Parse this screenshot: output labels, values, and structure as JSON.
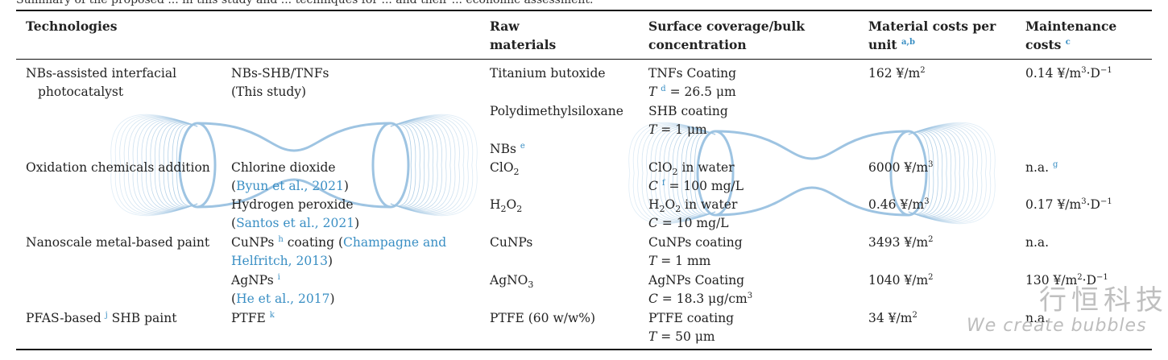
{
  "caption_fragment": "Summary of the proposed ... in this study and ... techniques for ... and their ... economic assessment.",
  "headers": {
    "technologies": "Technologies",
    "raw_materials_1": "Raw",
    "raw_materials_2": "materials",
    "surface_1": "Surface coverage/bulk",
    "surface_2": "concentration",
    "material_costs_1": "Material costs per",
    "material_costs_2": "unit",
    "material_costs_sup": "a,b",
    "maintenance_1": "Maintenance",
    "maintenance_2": "costs",
    "maintenance_sup": "c"
  },
  "rows": {
    "r1": {
      "category_1": "NBs-assisted interfacial",
      "category_2": "photocatalyst",
      "name_1": "NBs-SHB/TNFs",
      "name_2": "(This study)",
      "raw": "Titanium butoxide",
      "cov_1": "TNFs Coating",
      "cov_2_var": "T",
      "cov_2_sup": "d",
      "cov_2_val": " = 26.5 μm",
      "cost": "162 ¥/m",
      "cost_exp": "2",
      "maint_pre": "0.14 ¥/m",
      "maint_exp": "3",
      "maint_mid": "·D",
      "maint_exp2": "−1"
    },
    "r1b": {
      "raw": "Polydimethylsiloxane",
      "cov_1": "SHB coating",
      "cov_2_var": "T",
      "cov_2_val": " = 1 μm"
    },
    "r1c": {
      "raw": "NBs",
      "raw_sup": "e"
    },
    "r2": {
      "category": "Oxidation chemicals addition",
      "name_1": "Chlorine dioxide",
      "ref_open": "(",
      "ref": "Byun et al., 2021",
      "ref_close": ")",
      "raw_a": "ClO",
      "raw_sub": "2",
      "cov_1a": "ClO",
      "cov_1sub": "2",
      "cov_1b": " in water",
      "cov_2_var": "C",
      "cov_2_sup": "f",
      "cov_2_val": " = 100 mg/L",
      "cost": "6000 ¥/m",
      "cost_exp": "3",
      "maint": "n.a.",
      "maint_sup": "g"
    },
    "r3": {
      "name_1": "Hydrogen peroxide",
      "ref_open": "(",
      "ref": "Santos et al., 2021",
      "ref_close": ")",
      "raw_a": "H",
      "raw_sub1": "2",
      "raw_b": "O",
      "raw_sub2": "2",
      "cov_1a": "H",
      "cov_1sub1": "2",
      "cov_1b": "O",
      "cov_1sub2": "2",
      "cov_1c": " in water",
      "cov_2_var": "C",
      "cov_2_val": " = 10 mg/L",
      "cost": "0.46 ¥/m",
      "cost_exp": "3",
      "maint_pre": "0.17 ¥/m",
      "maint_exp": "3",
      "maint_mid": "·D",
      "maint_exp2": "−1"
    },
    "r4": {
      "category": "Nanoscale metal-based paint",
      "name_1a": "CuNPs",
      "name_1sup": "h",
      "name_1b": " coating (",
      "ref_1": "Champagne and",
      "ref_2": "Helfritch, 2013",
      "ref_close": ")",
      "raw": "CuNPs",
      "cov_1": "CuNPs coating",
      "cov_2_var": "T",
      "cov_2_val": " = 1 mm",
      "cost": "3493 ¥/m",
      "cost_exp": "2",
      "maint": "n.a."
    },
    "r5": {
      "name_1": "AgNPs",
      "name_1sup": "i",
      "ref_open": "(",
      "ref": "He et al., 2017",
      "ref_close": ")",
      "raw_a": "AgNO",
      "raw_sub": "3",
      "cov_1": "AgNPs Coating",
      "cov_2_var": "C",
      "cov_2_val": " = 18.3 μg/cm",
      "cov_2_exp": "3",
      "cost": "1040 ¥/m",
      "cost_exp": "2",
      "maint_pre": "130 ¥/m",
      "maint_exp": "2",
      "maint_mid": "·D",
      "maint_exp2": "−1"
    },
    "r6": {
      "category_a": "PFAS-based",
      "category_sup": "j",
      "category_b": " SHB paint",
      "name_1": "PTFE",
      "name_sup": "k",
      "raw": "PTFE (60 w/w%)",
      "cov_1": "PTFE coating",
      "cov_2_var": "T",
      "cov_2_val": " = 50 μm",
      "cost": "34 ¥/m",
      "cost_exp": "2",
      "maint": "n.a."
    }
  },
  "watermark": {
    "chinese": "行恒科技",
    "english": "We create bubbles"
  },
  "colors": {
    "link": "#3a8fc4",
    "watermark_lines": "#9ec4e2",
    "watermark_text": "#bdbdbd"
  }
}
